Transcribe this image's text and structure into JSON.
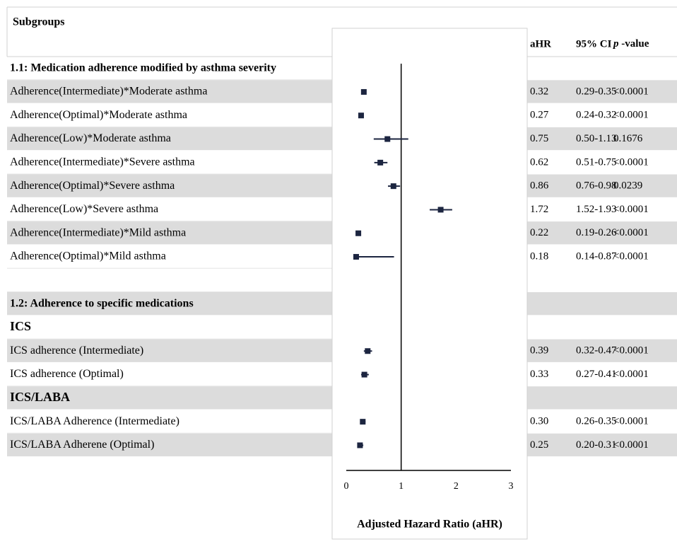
{
  "chart_data": {
    "type": "forest",
    "header": "Subgroups",
    "columns": [
      "aHR",
      "95% CI",
      "p -value"
    ],
    "x_label": "Adjusted Hazard Ratio (aHR)",
    "xlim": [
      0,
      3
    ],
    "xticks": [
      0,
      1,
      2,
      3
    ],
    "reference": 1,
    "marker_color": "#1c2540",
    "categories": [
      "1.1: Medication adherence modified by asthma severity",
      "Adherence(Intermediate)*Moderate asthma",
      "Adherence(Optimal)*Moderate asthma",
      "Adherence(Low)*Moderate asthma",
      "Adherence(Intermediate)*Severe asthma",
      "Adherence(Optimal)*Severe asthma",
      "Adherence(Low)*Severe asthma",
      "Adherence(Intermediate)*Mild asthma",
      "Adherence(Optimal)*Mild asthma",
      null,
      "1.2: Adherence to specific medications",
      "ICS",
      "ICS adherence (Intermediate)",
      "ICS adherence (Optimal)",
      "ICS/LABA",
      "ICS/LABA Adherence (Intermediate)",
      "ICS/LABA Adherene (Optimal)"
    ],
    "values": [
      null,
      0.32,
      0.27,
      0.75,
      0.62,
      0.86,
      1.72,
      0.22,
      0.18,
      null,
      null,
      null,
      0.39,
      0.33,
      null,
      0.3,
      0.25
    ],
    "value_labels": [
      null,
      "0.32",
      "0.27",
      "0.75",
      "0.62",
      "0.86",
      "1.72",
      "0.22",
      "0.18",
      null,
      null,
      null,
      "0.39",
      "0.33",
      null,
      "0.30",
      "0.25"
    ],
    "ci_low": [
      null,
      0.29,
      0.24,
      0.5,
      0.51,
      0.76,
      1.52,
      0.19,
      0.14,
      null,
      null,
      null,
      0.32,
      0.27,
      null,
      0.26,
      0.2
    ],
    "ci_high": [
      null,
      0.35,
      0.32,
      1.13,
      0.75,
      0.98,
      1.93,
      0.26,
      0.87,
      null,
      null,
      null,
      0.47,
      0.41,
      null,
      0.35,
      0.31
    ],
    "ci_labels": [
      null,
      "0.29-0.35",
      "0.24-0.32",
      "0.50-1.13",
      "0.51-0.75",
      "0.76-0.98",
      "1.52-1.93",
      "0.19-0.26",
      "0.14-0.87",
      null,
      null,
      null,
      "0.32-0.47",
      "0.27-0.41",
      null,
      "0.26-0.35",
      "0.20-0.31"
    ],
    "p_labels": [
      null,
      "<0.0001",
      "<0.0001",
      "0.1676",
      "<0.0001",
      "0.0239",
      "<0.0001",
      "<0.0001",
      "<0.0001",
      null,
      null,
      null,
      "<0.0001",
      "<0.0001",
      null,
      "<0.0001",
      "<0.0001"
    ]
  }
}
